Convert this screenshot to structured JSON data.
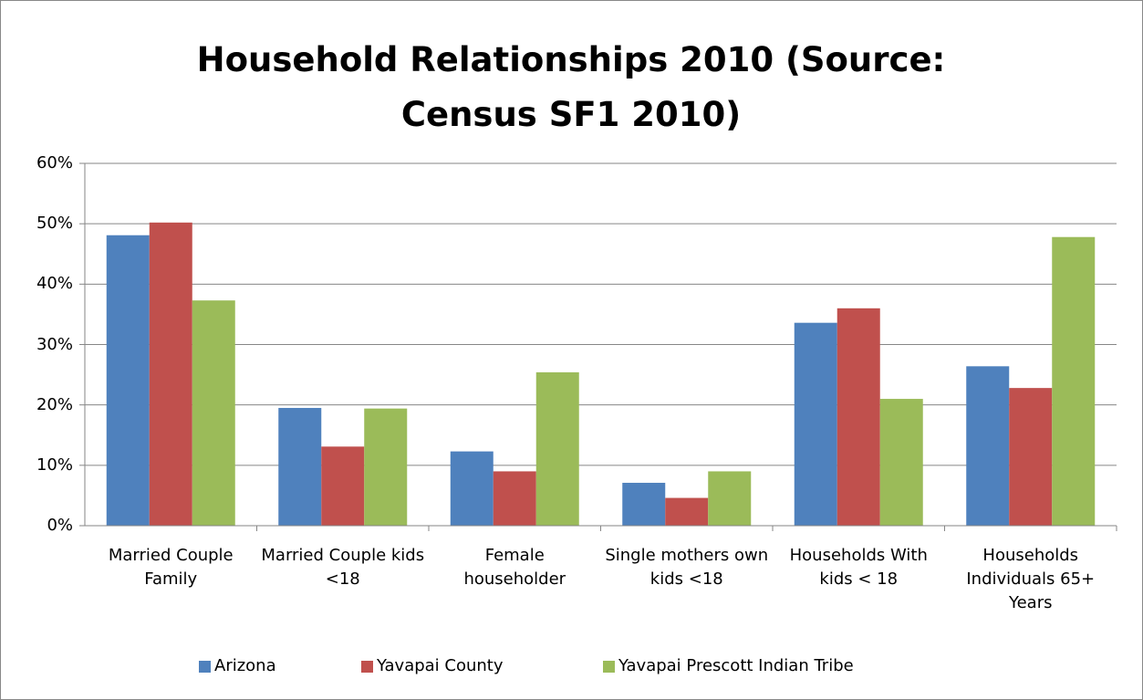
{
  "chart_data": {
    "type": "bar",
    "title": "Household Relationships 2010 (Source: Census SF1 2010)",
    "categories": [
      "Married Couple Family",
      "Married Couple kids <18",
      "Female householder",
      "Single mothers own kids <18",
      "Households With kids < 18",
      "Households Individuals 65+ Years"
    ],
    "series": [
      {
        "name": "Arizona",
        "color": "#4f81bd",
        "values": [
          48.1,
          19.5,
          12.3,
          7.1,
          33.6,
          26.4
        ]
      },
      {
        "name": "Yavapai County",
        "color": "#c0504d",
        "values": [
          50.2,
          13.1,
          9.0,
          4.6,
          36.0,
          22.8
        ]
      },
      {
        "name": "Yavapai Prescott Indian Tribe",
        "color": "#9bbb59",
        "values": [
          37.3,
          19.4,
          25.4,
          9.0,
          21.0,
          47.8
        ]
      }
    ],
    "ylim": [
      0,
      60
    ],
    "yticks": [
      {
        "value": 0,
        "label": "0%"
      },
      {
        "value": 10,
        "label": "10%"
      },
      {
        "value": 20,
        "label": "20%"
      },
      {
        "value": 30,
        "label": "30%"
      },
      {
        "value": 40,
        "label": "40%"
      },
      {
        "value": 50,
        "label": "50%"
      },
      {
        "value": 60,
        "label": "60%"
      }
    ],
    "grid": true,
    "legend": "bottom"
  }
}
